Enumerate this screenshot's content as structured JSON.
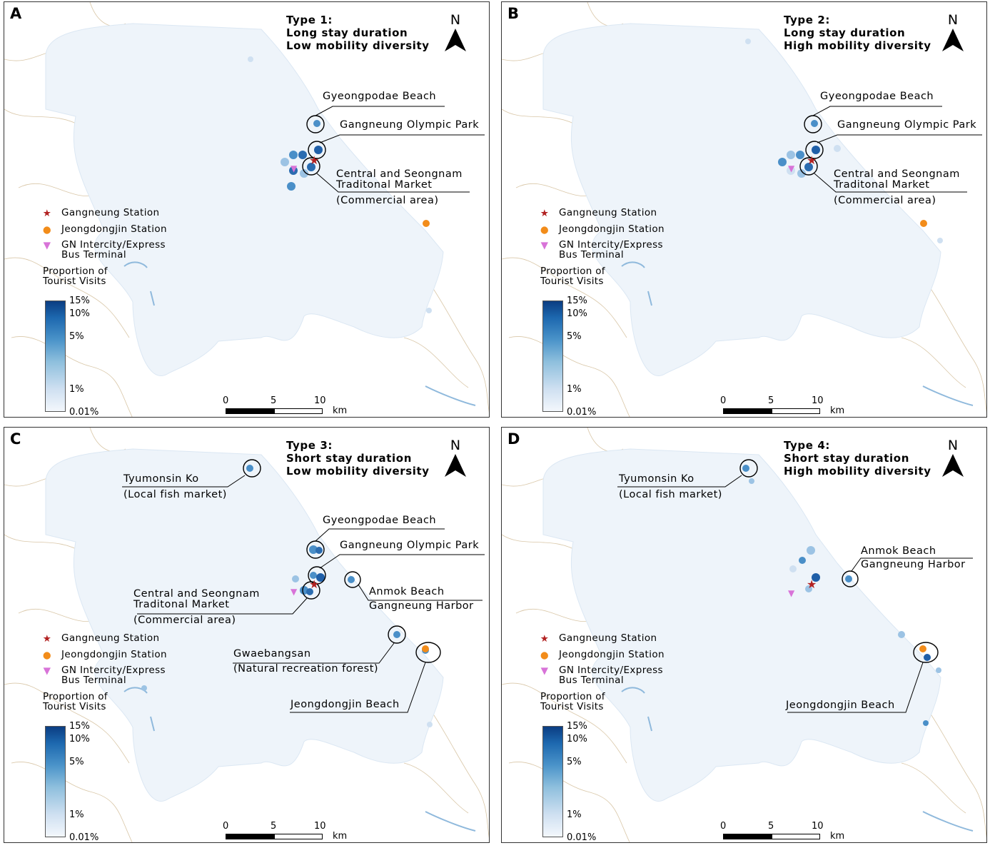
{
  "panels": [
    {
      "letter": "A",
      "type_title": "Type 1:",
      "stay": "Long stay duration",
      "mobility": "Low mobility diversity",
      "labels": [
        "Gyeongpodae Beach",
        "Gangneung Olympic Park",
        "Central and Seongnam",
        "Traditonal Market",
        "(Commercial area)"
      ]
    },
    {
      "letter": "B",
      "type_title": "Type 2:",
      "stay": "Long stay duration",
      "mobility": "High mobility diversity",
      "labels": [
        "Gyeongpodae Beach",
        "Gangneung Olympic Park",
        "Central and Seongnam",
        "Traditonal Market",
        "(Commercial area)"
      ]
    },
    {
      "letter": "C",
      "type_title": "Type 3:",
      "stay": "Short stay duration",
      "mobility": "Low mobility diversity",
      "labels": [
        "Tyumonsin Ko",
        "(Local fish market)",
        "Gyeongpodae Beach",
        "Gangneung Olympic Park",
        "Anmok Beach",
        "Gangneung Harbor",
        "Central and Seongnam",
        "Traditonal Market",
        "(Commercial area)",
        "Gwaebangsan",
        "(Natural recreation forest)",
        "Jeongdongjin Beach"
      ]
    },
    {
      "letter": "D",
      "type_title": "Type 4:",
      "stay": "Short stay duration",
      "mobility": "High mobility diversity",
      "labels": [
        "Tyumonsin Ko",
        "(Local fish market)",
        "Anmok Beach",
        "Gangneung Harbor",
        "Jeongdongjin Beach"
      ]
    }
  ],
  "north_label": "N",
  "legend": {
    "station": "Gangneung Station",
    "jeongdongjin": "Jeongdongjin Station",
    "bus_line1": "GN Intercity/Express",
    "bus_line2": "Bus Terminal",
    "title_line1": "Proportion of",
    "title_line2": "Tourist Visits",
    "ticks": [
      "15%",
      "10%",
      "5%",
      "1%",
      "0.01%"
    ]
  },
  "scale": {
    "ticks": [
      "0",
      "5",
      "10"
    ],
    "unit": "km"
  },
  "colors": {
    "station_star": "#b22222",
    "jeongdongjin_dot": "#f28c1a",
    "bus_triangle": "#d873d8",
    "region_fill": "#eef4fa",
    "hex_dark": "#1f5fa8",
    "hex_mid": "#4a8fc8",
    "hex_light": "#9cc3e4"
  },
  "icons": {
    "station": "red-star-icon",
    "jeongdongjin": "orange-dot-icon",
    "bus_terminal": "pink-triangle-icon",
    "north": "north-arrow-icon"
  }
}
